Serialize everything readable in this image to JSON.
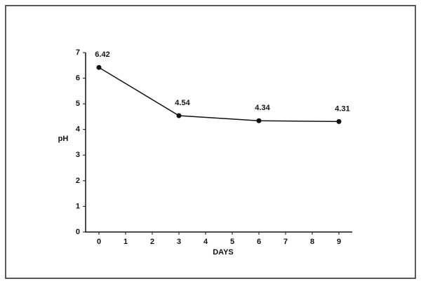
{
  "chart_data": {
    "type": "line",
    "x": [
      0,
      3,
      6,
      9
    ],
    "values": [
      6.42,
      4.54,
      4.34,
      4.31
    ],
    "color": "#111111",
    "xlabel": "DAYS",
    "ylabel": "pH",
    "xlim": [
      -0.5,
      9.5
    ],
    "xticks": [
      0,
      1,
      2,
      3,
      4,
      5,
      6,
      7,
      8,
      9
    ],
    "ylim": [
      0,
      7
    ],
    "yticks": [
      0,
      1,
      2,
      3,
      4,
      5,
      6,
      7
    ]
  }
}
